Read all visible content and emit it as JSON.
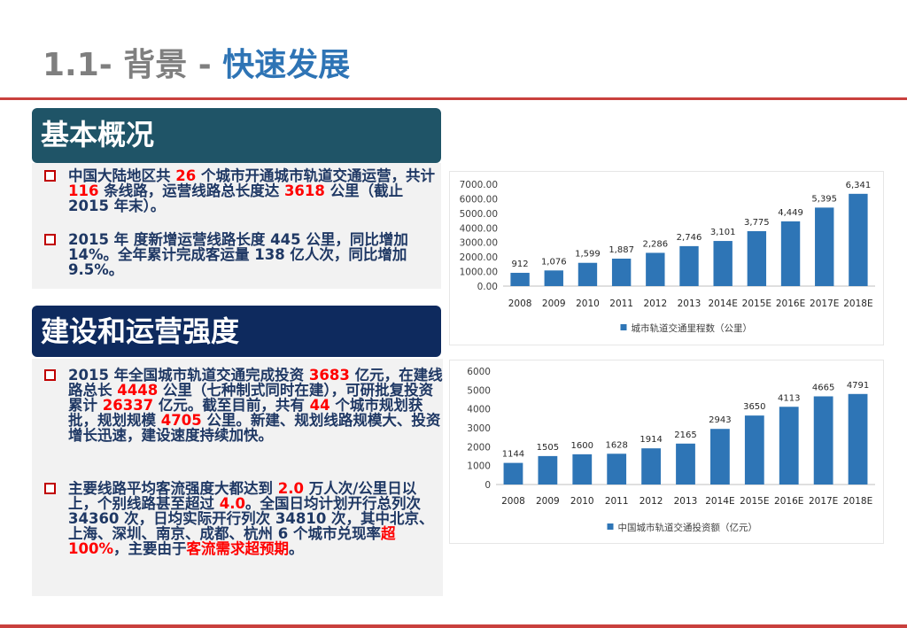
{
  "header": {
    "title_prefix": "1.1-  背景 - ",
    "title_accent": "快速发展"
  },
  "colors": {
    "rule": "#c9403d",
    "bar": "#2e75b6",
    "heading1": "#1f5467",
    "heading2": "#0e2a5e",
    "body_text": "#1f3864",
    "highlight": "#ff0000"
  },
  "section1": {
    "heading": "基本概况",
    "bullet1": {
      "t1": "中国大陆地区共 ",
      "v1": "26",
      "t2": " 个城市开通城市轨道交通运营，共计 ",
      "v2": "116",
      "t3": " 条线路，运营线路总长度达 ",
      "v3": "3618",
      "t4": " 公里（截止2015 年末）。"
    },
    "bullet2": {
      "t1": "2015 年 度新增运营线路长度 445 公里，同比增加 14%。全年累计完成客运量 138 亿人次，同比增加 9.5%。"
    }
  },
  "section2": {
    "heading": "建设和运营强度",
    "bullet1": {
      "t1": "   2015 年全国城市轨道交通完成投资 ",
      "v1": "3683",
      "t2": " 亿元，在建线路总长 ",
      "v2": "4448",
      "t3": " 公里（七种制式同时在建），可研批复投资累计 ",
      "v3": "26337",
      "t4": " 亿元。截至目前，共有 ",
      "v4": "44",
      "t5": " 个城市规划获批，规划规模 ",
      "v5": "4705",
      "t6": " 公里。新建、规划线路规模大、投资增长迅速，建设速度持续加快。"
    },
    "bullet2": {
      "t1": "主要线路平均客流强度大都达到 ",
      "v1": "2.0",
      "t2": " 万人次/公里日以上，个别线路甚至超过 ",
      "v2": "4.0",
      "t3": "。全国日均计划开行总列次 34360 次，日均实际开行列次 34810 次，其中北京、上海、深圳、南京、成都、杭州 6 个城市兑现率",
      "v3": "超100%",
      "t4": "，主要由于",
      "v4": "客流需求超预期",
      "t5": "。"
    }
  },
  "chart_data": [
    {
      "type": "bar",
      "categories": [
        "2008",
        "2009",
        "2010",
        "2011",
        "2012",
        "2013",
        "2014E",
        "2015E",
        "2016E",
        "2017E",
        "2018E"
      ],
      "series": [
        {
          "name": "城市轨道交通里程数（公里）",
          "values": [
            912,
            1076,
            1599,
            1887,
            2286,
            2746,
            3101,
            3775,
            4449,
            5395,
            6341
          ],
          "labels": [
            "912",
            "1,076",
            "1,599",
            "1,887",
            "2,286",
            "2,746",
            "3,101",
            "3,775",
            "4,449",
            "5,395",
            "6,341"
          ]
        }
      ],
      "yticks": [
        "0.00",
        "1000.00",
        "2000.00",
        "3000.00",
        "4000.00",
        "5000.00",
        "6000.00",
        "7000.00"
      ],
      "ylim": [
        0,
        7000
      ],
      "legend": "bottom",
      "grid": false
    },
    {
      "type": "bar",
      "categories": [
        "2008",
        "2009",
        "2010",
        "2011",
        "2012",
        "2013",
        "2014E",
        "2015E",
        "2016E",
        "2017E",
        "2018E"
      ],
      "series": [
        {
          "name": "中国城市轨道交通投资额（亿元）",
          "values": [
            1144,
            1505,
            1600,
            1628,
            1914,
            2165,
            2943,
            3650,
            4113,
            4665,
            4791
          ],
          "labels": [
            "1144",
            "1505",
            "1600",
            "1628",
            "1914",
            "2165",
            "2943",
            "3650",
            "4113",
            "4665",
            "4791"
          ]
        }
      ],
      "yticks": [
        "0",
        "1000",
        "2000",
        "3000",
        "4000",
        "5000",
        "6000"
      ],
      "ylim": [
        0,
        6000
      ],
      "legend": "bottom",
      "grid": false
    }
  ]
}
